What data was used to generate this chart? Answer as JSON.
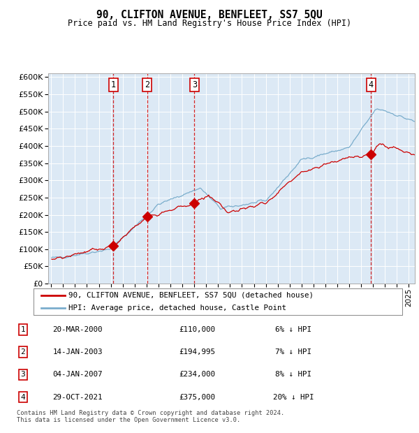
{
  "title": "90, CLIFTON AVENUE, BENFLEET, SS7 5QU",
  "subtitle": "Price paid vs. HM Land Registry's House Price Index (HPI)",
  "background_color": "#dce9f5",
  "grid_color": "#ffffff",
  "red_line_color": "#cc0000",
  "blue_line_color": "#7aadcc",
  "sale_marker_color": "#cc0000",
  "dashed_line_color": "#cc0000",
  "ylim": [
    0,
    600000
  ],
  "yticks": [
    0,
    50000,
    100000,
    150000,
    200000,
    250000,
    300000,
    350000,
    400000,
    450000,
    500000,
    550000,
    600000
  ],
  "sale_dates_decimal": [
    2000.22,
    2003.04,
    2007.01,
    2021.83
  ],
  "sale_prices": [
    110000,
    194995,
    234000,
    375000
  ],
  "sale_labels": [
    "1",
    "2",
    "3",
    "4"
  ],
  "legend_entries": [
    "90, CLIFTON AVENUE, BENFLEET, SS7 5QU (detached house)",
    "HPI: Average price, detached house, Castle Point"
  ],
  "table_data": [
    [
      "1",
      "20-MAR-2000",
      "£110,000",
      "6% ↓ HPI"
    ],
    [
      "2",
      "14-JAN-2003",
      "£194,995",
      "7% ↓ HPI"
    ],
    [
      "3",
      "04-JAN-2007",
      "£234,000",
      "8% ↓ HPI"
    ],
    [
      "4",
      "29-OCT-2021",
      "£375,000",
      "20% ↓ HPI"
    ]
  ],
  "footer": "Contains HM Land Registry data © Crown copyright and database right 2024.\nThis data is licensed under the Open Government Licence v3.0."
}
